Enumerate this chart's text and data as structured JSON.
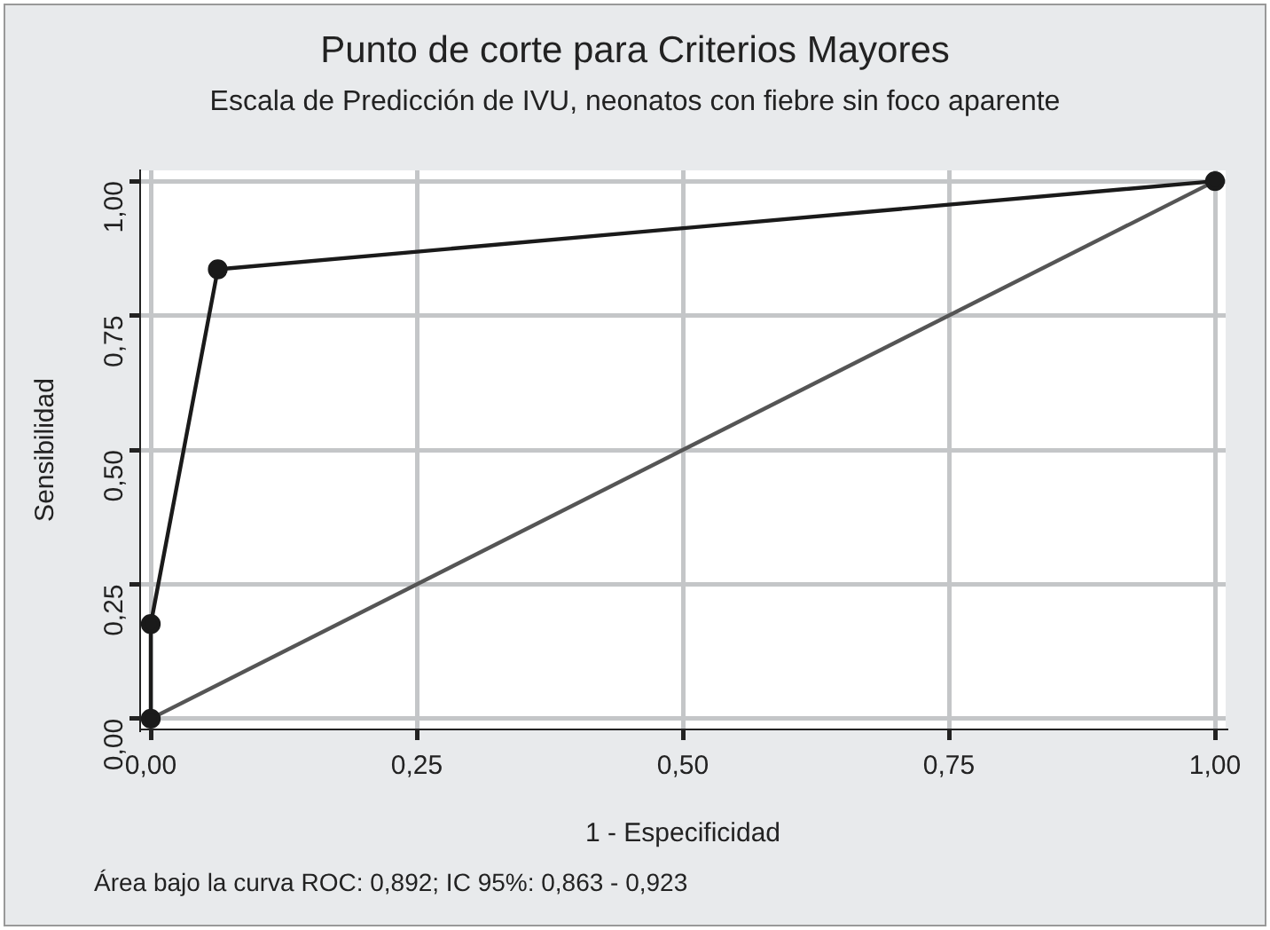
{
  "chart_data": {
    "type": "line",
    "title": "Punto de corte para Criterios Mayores",
    "subtitle": "Escala de Predicción de IVU, neonatos con fiebre sin foco aparente",
    "xlabel": "1 - Especificidad",
    "ylabel": "Sensibilidad",
    "series": [
      {
        "type": "line",
        "color": "#1a1a1a",
        "marker": "circle",
        "x": [
          0,
          0,
          0.063,
          1
        ],
        "values": [
          0,
          0.176,
          0.836,
          1
        ]
      },
      {
        "type": "line",
        "color": "#555555",
        "marker": "none",
        "x": [
          0,
          1
        ],
        "values": [
          0,
          1
        ]
      }
    ],
    "xlim": [
      -0.01,
      1.01
    ],
    "ylim": [
      -0.02,
      1.02
    ],
    "xticks": [
      {
        "value": 0,
        "label": "0,00"
      },
      {
        "value": 0.25,
        "label": "0,25"
      },
      {
        "value": 0.5,
        "label": "0,50"
      },
      {
        "value": 0.75,
        "label": "0,75"
      },
      {
        "value": 1,
        "label": "1,00"
      }
    ],
    "yticks": [
      {
        "value": 0,
        "label": "0,00"
      },
      {
        "value": 0.25,
        "label": "0,25"
      },
      {
        "value": 0.5,
        "label": "0,50"
      },
      {
        "value": 0.75,
        "label": "0,75"
      },
      {
        "value": 1,
        "label": "1,00"
      }
    ],
    "grid": true,
    "legend": false,
    "annotations": [
      "Área bajo la curva ROC: 0,892; IC 95%: 0,863 - 0,923"
    ]
  }
}
